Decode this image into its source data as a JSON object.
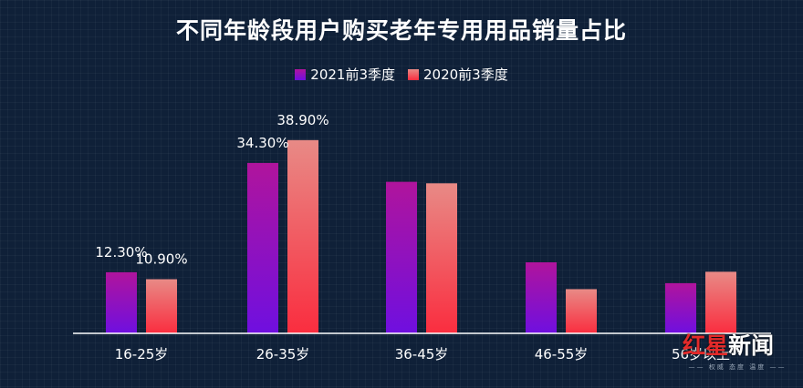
{
  "title": "不同年龄段用户购买老年专用用品销量占比",
  "legend": [
    {
      "label": "2021前3季度",
      "color": "#7a18d6"
    },
    {
      "label": "2020前3季度",
      "color": "#f4424f"
    }
  ],
  "chart_data": {
    "type": "bar",
    "title": "不同年龄段用户购买老年专用用品销量占比",
    "categories": [
      "16-25岁",
      "26-35岁",
      "36-45岁",
      "46-55岁",
      "56岁以上"
    ],
    "series": [
      {
        "name": "2021前3季度",
        "values": [
          12.3,
          34.3,
          30.5,
          14.3,
          10.1
        ],
        "labels": [
          "12.30%",
          "34.30%",
          null,
          null,
          null
        ]
      },
      {
        "name": "2020前3季度",
        "values": [
          10.9,
          38.9,
          30.2,
          8.9,
          12.4
        ],
        "labels": [
          "10.90%",
          "38.90%",
          null,
          null,
          null
        ]
      }
    ],
    "ylim": [
      0,
      44
    ],
    "grid": false,
    "legend_position": "top-center"
  },
  "colors": {
    "series1_top": "#b0149c",
    "series1_bottom": "#6f0fe0",
    "series2_top": "#e88a86",
    "series2_bottom": "#fa2d3f",
    "axis": "#ffffff",
    "background": "#0f2038"
  },
  "watermark": {
    "brand_red": "红星",
    "brand_white": "新闻",
    "tagline": "—— 权威 态度 温度 ——"
  }
}
